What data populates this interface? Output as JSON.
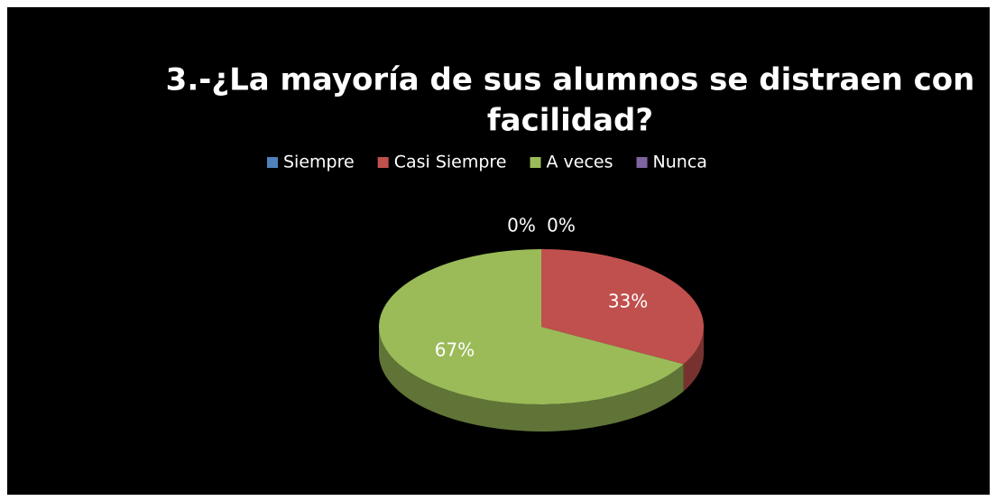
{
  "chart_data": {
    "type": "pie",
    "title": [
      "3.-¿La mayoría de sus alumnos se distraen con",
      "facilidad?"
    ],
    "categories": [
      "Siempre",
      "Casi Siempre",
      "A veces",
      "Nunca"
    ],
    "values": [
      0,
      33,
      67,
      0
    ],
    "value_labels": [
      "0%",
      "33%",
      "67%",
      "0%"
    ],
    "colors": [
      "#4f81bd",
      "#c0504d",
      "#9bbb59",
      "#8064a2"
    ],
    "legend": "top"
  }
}
